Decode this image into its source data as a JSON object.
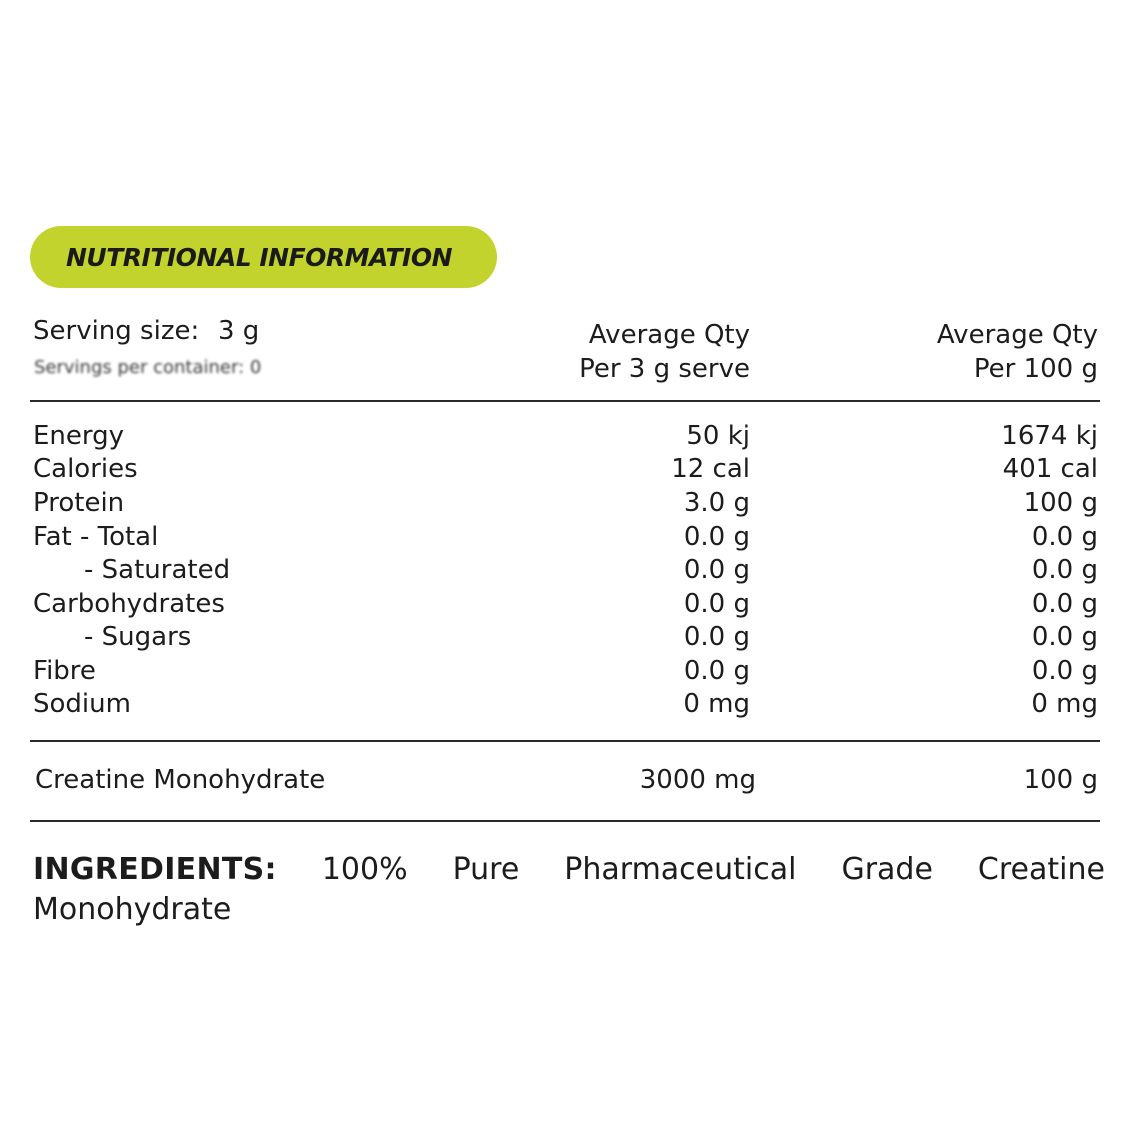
{
  "header": {
    "badge_title": "NUTRITIONAL INFORMATION",
    "badge_color": "#c2d32d"
  },
  "serving": {
    "size_label": "Serving size:",
    "size_value": "3 g",
    "blurred_line": "Servings per container: 0"
  },
  "columns": {
    "per_serve_line1": "Average Qty",
    "per_serve_line2": "Per 3 g serve",
    "per_100_line1": "Average Qty",
    "per_100_line2": "Per 100 g"
  },
  "nutrients": [
    {
      "label": "Energy",
      "per_serve": "50 kj",
      "per_100": "1674 kj"
    },
    {
      "label": "Calories",
      "per_serve": "12 cal",
      "per_100": "401 cal"
    },
    {
      "label": "Protein",
      "per_serve": "3.0 g",
      "per_100": "100 g"
    },
    {
      "label": "Fat - Total",
      "per_serve": "0.0 g",
      "per_100": "0.0 g"
    },
    {
      "label": "- Saturated",
      "per_serve": "0.0 g",
      "per_100": "0.0 g"
    },
    {
      "label": "Carbohydrates",
      "per_serve": "0.0 g",
      "per_100": "0.0 g"
    },
    {
      "label": "- Sugars",
      "per_serve": "0.0 g",
      "per_100": "0.0 g"
    },
    {
      "label": "Fibre",
      "per_serve": "0.0 g",
      "per_100": "0.0 g"
    },
    {
      "label": "Sodium",
      "per_serve": "0 mg",
      "per_100": "0 mg"
    }
  ],
  "active": {
    "label": "Creatine Monohydrate",
    "per_serve": "3000 mg",
    "per_100": "100 g"
  },
  "ingredients": {
    "label": "INGREDIENTS:",
    "words": [
      "100%",
      "Pure",
      "Pharmaceutical",
      "Grade",
      "Creatine"
    ],
    "line2": "Monohydrate"
  }
}
